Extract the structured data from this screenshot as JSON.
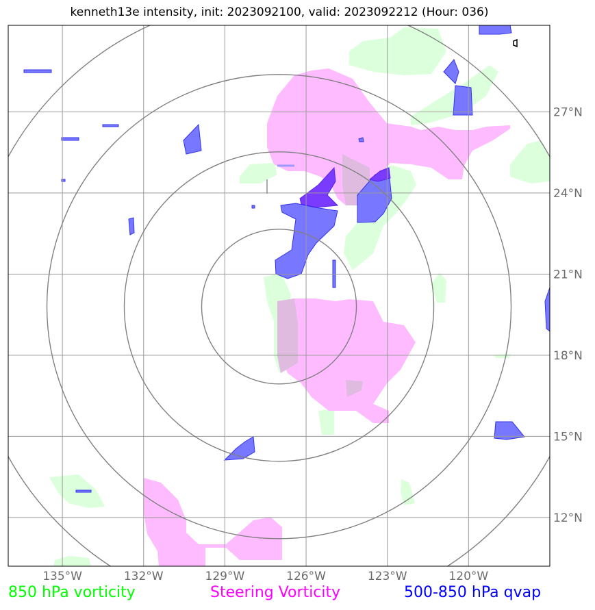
{
  "title": "kenneth13e intensity, init: 2023092100, valid: 2023092212 (Hour: 036)",
  "map": {
    "lon_labels": [
      "135°W",
      "132°W",
      "129°W",
      "126°W",
      "123°W",
      "120°W"
    ],
    "lat_labels": [
      "27°N",
      "24°N",
      "21°N",
      "18°N",
      "15°N",
      "12°N"
    ],
    "lon_values": [
      -135,
      -132,
      -129,
      -126,
      -123,
      -120
    ],
    "lat_values": [
      27,
      24,
      21,
      18,
      15,
      12
    ],
    "extent": {
      "lon_min": -137,
      "lon_max": -117,
      "lat_min": 10.2,
      "lat_max": 30.2
    },
    "range_rings_center": {
      "lon": -127,
      "lat": 19.8
    },
    "range_rings_count": 4
  },
  "legend": {
    "item1": {
      "label": "850 hPa vorticity",
      "color": "#00ff00"
    },
    "item2": {
      "label": "Steering Vorticity",
      "color": "#ff00ff"
    },
    "item3": {
      "label": "500-850 hPa qvap",
      "color": "#0000ff"
    }
  },
  "colors": {
    "green_fill": "#dcffdc",
    "pink_fill": "#ffbbff",
    "blue_fill": "#7777ff",
    "blue_edge": "#3333ee",
    "grid": "#999999",
    "rings": "#808080"
  }
}
